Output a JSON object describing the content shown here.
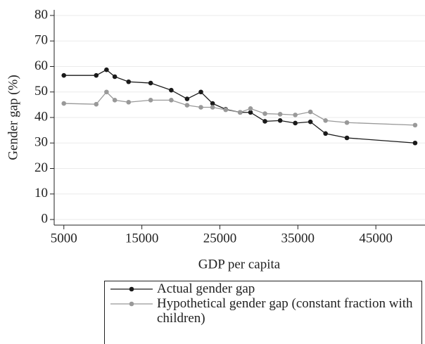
{
  "chart_data": {
    "type": "line",
    "x_label": "GDP per capita",
    "y_label": "Gender gap (%)",
    "xlim": [
      3760,
      51300
    ],
    "ylim": [
      -2.2,
      82.2
    ],
    "xticks": [
      5000,
      15000,
      25000,
      35000,
      45000
    ],
    "yticks": [
      0,
      10,
      20,
      30,
      40,
      50,
      60,
      70,
      80
    ],
    "grid": true,
    "series": [
      {
        "name": "Actual gender gap",
        "color": "#1a1a1a",
        "x": [
          5000,
          9150,
          10470,
          11530,
          13300,
          16130,
          18770,
          20800,
          22570,
          24070,
          25750,
          27600,
          28930,
          30780,
          32730,
          34670,
          36610,
          38550,
          41290,
          50030
        ],
        "values": [
          56.5,
          56.5,
          58.7,
          56,
          54,
          53.5,
          50.7,
          47.3,
          50,
          45.5,
          43.2,
          42,
          42,
          38.5,
          38.8,
          37.8,
          38.3,
          33.7,
          32,
          30
        ]
      },
      {
        "name": "Hypothetical gender gap (constant fraction with children)",
        "color": "#999999",
        "x": [
          5000,
          9150,
          10470,
          11530,
          13300,
          16130,
          18770,
          20800,
          22570,
          24070,
          25750,
          27600,
          28930,
          30780,
          32730,
          34670,
          36610,
          38550,
          41290,
          50030
        ],
        "values": [
          45.5,
          45.2,
          50,
          46.8,
          46,
          46.8,
          46.8,
          44.8,
          44,
          44,
          43,
          42,
          43.5,
          41.5,
          41.3,
          41,
          42.2,
          38.8,
          38,
          37
        ]
      }
    ]
  }
}
